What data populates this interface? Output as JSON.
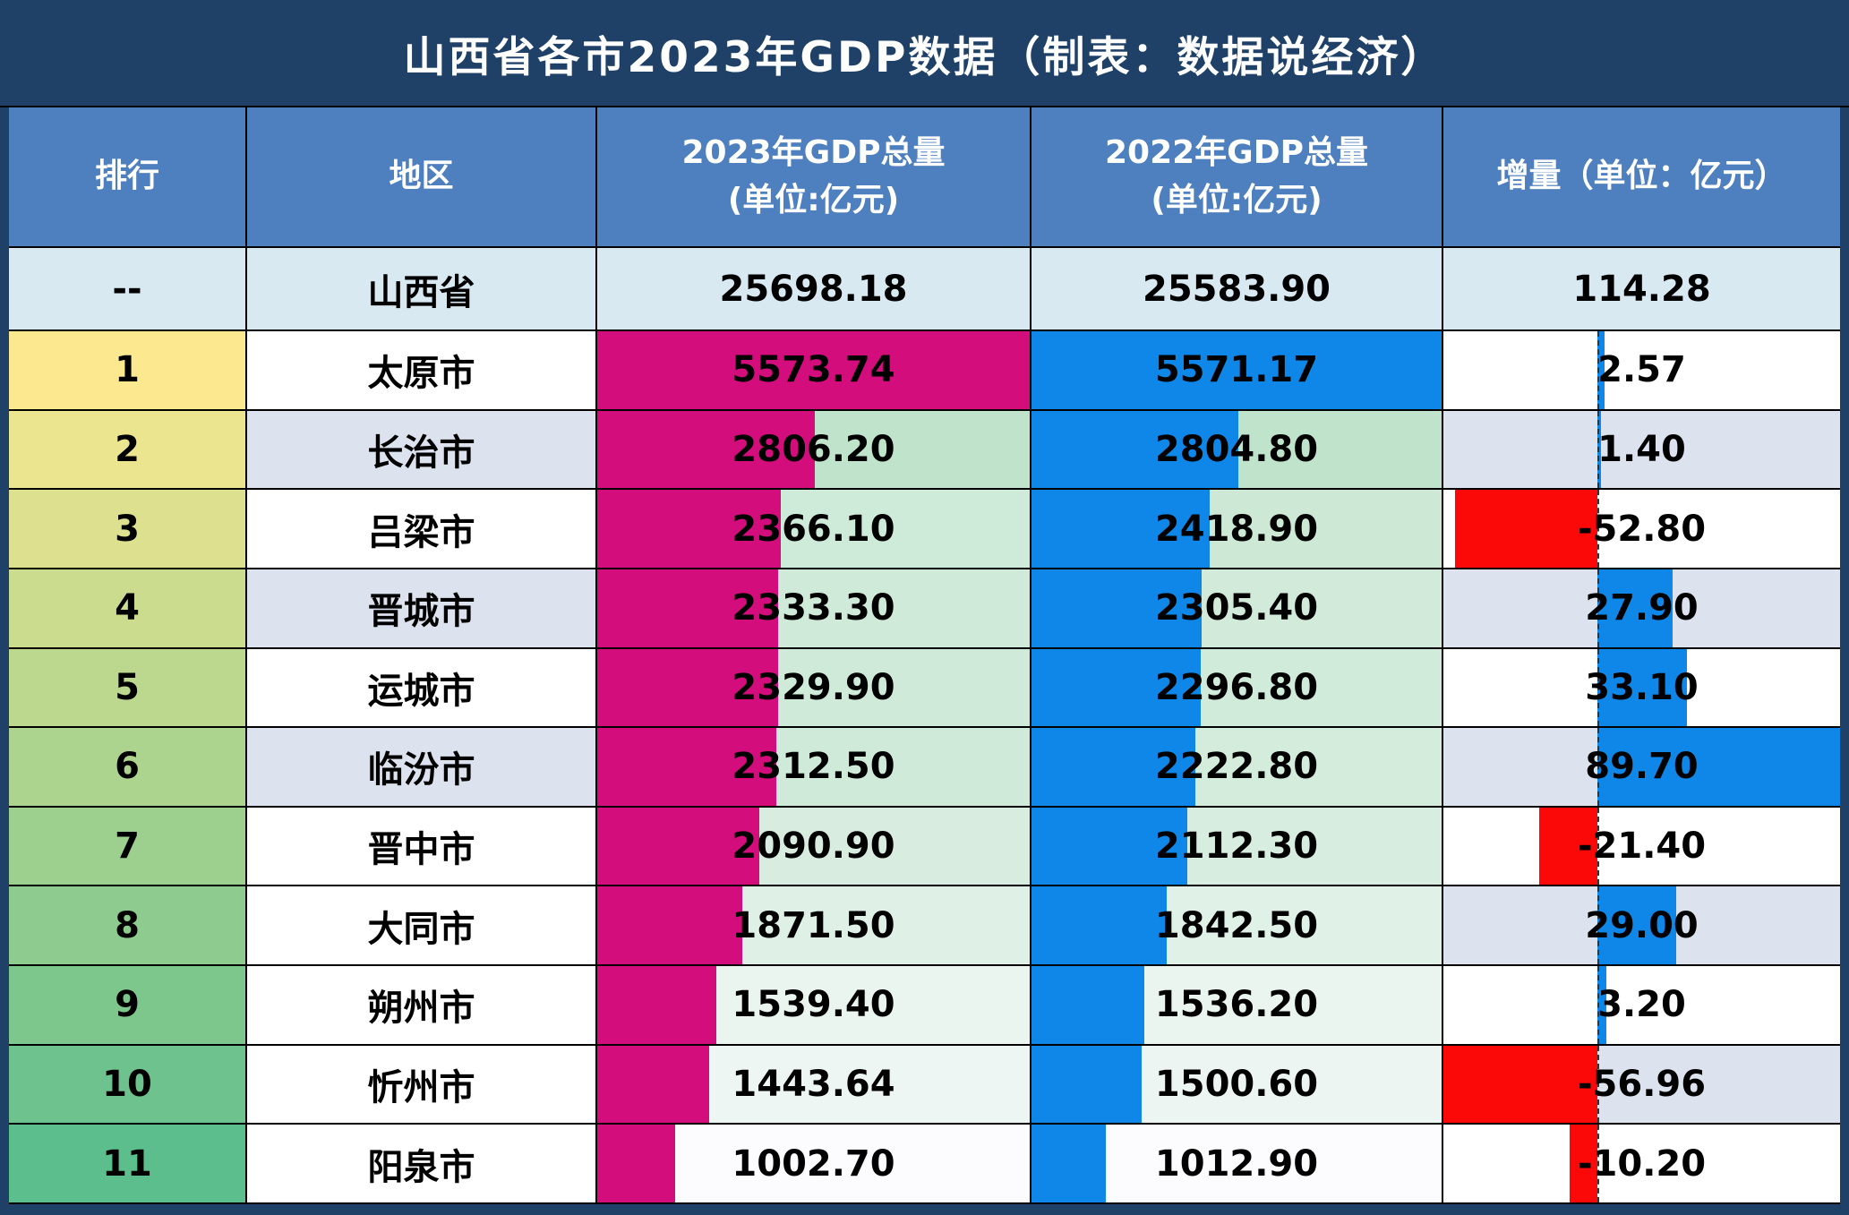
{
  "title": "山西省各市2023年GDP数据（制表：数据说经济）",
  "columns": {
    "rank": "排行",
    "region": "地区",
    "gdp2023_line1": "2023年GDP总量",
    "gdp2023_line2": "(单位:亿元)",
    "gdp2022_line1": "2022年GDP总量",
    "gdp2022_line2": "(单位:亿元)",
    "delta": "增量（单位：亿元）"
  },
  "province_row": {
    "rank": "--",
    "region": "山西省",
    "gdp2023": "25698.18",
    "gdp2022": "25583.90",
    "delta": "114.28"
  },
  "rows": [
    {
      "rank": "1",
      "region": "太原市",
      "gdp2023": "5573.74",
      "gdp2022": "5571.17",
      "delta": "2.57"
    },
    {
      "rank": "2",
      "region": "长治市",
      "gdp2023": "2806.20",
      "gdp2022": "2804.80",
      "delta": "1.40"
    },
    {
      "rank": "3",
      "region": "吕梁市",
      "gdp2023": "2366.10",
      "gdp2022": "2418.90",
      "delta": "-52.80"
    },
    {
      "rank": "4",
      "region": "晋城市",
      "gdp2023": "2333.30",
      "gdp2022": "2305.40",
      "delta": "27.90"
    },
    {
      "rank": "5",
      "region": "运城市",
      "gdp2023": "2329.90",
      "gdp2022": "2296.80",
      "delta": "33.10"
    },
    {
      "rank": "6",
      "region": "临汾市",
      "gdp2023": "2312.50",
      "gdp2022": "2222.80",
      "delta": "89.70"
    },
    {
      "rank": "7",
      "region": "晋中市",
      "gdp2023": "2090.90",
      "gdp2022": "2112.30",
      "delta": "-21.40"
    },
    {
      "rank": "8",
      "region": "大同市",
      "gdp2023": "1871.50",
      "gdp2022": "1842.50",
      "delta": "29.00"
    },
    {
      "rank": "9",
      "region": "朔州市",
      "gdp2023": "1539.40",
      "gdp2022": "1536.20",
      "delta": "3.20"
    },
    {
      "rank": "10",
      "region": "忻州市",
      "gdp2023": "1443.64",
      "gdp2022": "1500.60",
      "delta": "-56.96"
    },
    {
      "rank": "11",
      "region": "阳泉市",
      "gdp2023": "1002.70",
      "gdp2022": "1012.90",
      "delta": "-10.20"
    }
  ],
  "colors": {
    "frame_navy": "#1F4167",
    "header_blue": "#4E7FBE",
    "province_light_blue": "#D9E9F2",
    "band_blue_grey": "#DCE3EE",
    "white": "#FFFFFF",
    "bar_magenta": "#D40D7D",
    "bar_blue": "#0E87E8",
    "bar_red": "#FB0808",
    "scale_white": "#FCFCFF",
    "scale_green": "#63BE7B",
    "rank_scale_start": "#FCE98F",
    "rank_scale_end": "#5DBE8D",
    "grid_line": "#000000",
    "axis_dash": "#333333"
  },
  "scales": {
    "gdp2023_bar_max": 5573.74,
    "gdp2023_bg_min": 1002.7,
    "gdp2023_bg_max": 5573.74,
    "gdp2022_bar_max": 5571.17,
    "gdp2022_bg_min": 1012.9,
    "gdp2022_bg_max": 5571.17,
    "delta_min": -56.96,
    "delta_max": 89.7,
    "region_banded_ranks": [
      2,
      4,
      6
    ],
    "delta_banded_ranks": [
      2,
      4,
      6,
      8,
      10
    ]
  },
  "chart_data": {
    "type": "table",
    "title": "山西省各市2023年GDP数据（制表：数据说经济）",
    "categories": [
      "太原市",
      "长治市",
      "吕梁市",
      "晋城市",
      "运城市",
      "临汾市",
      "晋中市",
      "大同市",
      "朔州市",
      "忻州市",
      "阳泉市"
    ],
    "series": [
      {
        "name": "2023年GDP总量(单位:亿元)",
        "values": [
          5573.74,
          2806.2,
          2366.1,
          2333.3,
          2329.9,
          2312.5,
          2090.9,
          1871.5,
          1539.4,
          1443.64,
          1002.7
        ]
      },
      {
        "name": "2022年GDP总量(单位:亿元)",
        "values": [
          5571.17,
          2804.8,
          2418.9,
          2305.4,
          2296.8,
          2222.8,
          2112.3,
          1842.5,
          1536.2,
          1500.6,
          1012.9
        ]
      },
      {
        "name": "增量（单位：亿元）",
        "values": [
          2.57,
          1.4,
          -52.8,
          27.9,
          33.1,
          89.7,
          -21.4,
          29.0,
          3.2,
          -56.96,
          -10.2
        ]
      }
    ],
    "province_total": {
      "name": "山西省",
      "gdp2023": 25698.18,
      "gdp2022": 25583.9,
      "delta": 114.28
    },
    "layout_hints": {
      "gdp_bars_fill_from_left": true,
      "delta_axis_position_pct": 38.84,
      "delta_positive_color": "#0E87E8",
      "delta_negative_color": "#FB0808"
    }
  }
}
